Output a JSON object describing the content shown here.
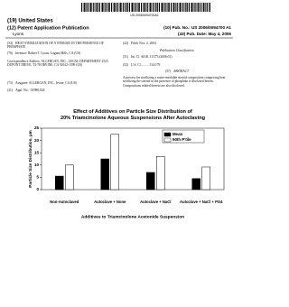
{
  "header": {
    "barcode_number": "US 20060094700A1",
    "country": "(19) United States",
    "kind": "(12) Patent Application Publication",
    "pub_no": "(10) Pub. No.: US 2006/0094700 A1",
    "inventor_short": "Lyons",
    "pub_date": "(43) Pub. Date: May 4, 2006"
  },
  "left_fields": [
    {
      "code": "(54)",
      "text": "HEAT STERILIZATION OF A STEROID IN THE PRESENCE OF PHOSPHATE"
    },
    {
      "code": "(76)",
      "text": "Inventor: Robert T. Lyons, Laguna Hills, CA (US)"
    },
    {
      "code": "",
      "text": "Correspondence Address: ALLERGAN, INC., LEGAL DEPARTMENT 2525 DUPONT DRIVE, T2-7H IRVINE, CA 92612-1599 (US)"
    },
    {
      "code": "(73)",
      "text": "Assignee: ALLERGAN, INC., Irvine, CA (US)"
    },
    {
      "code": "(21)",
      "text": "Appl. No.: 10/980,024"
    }
  ],
  "right_fields": [
    {
      "code": "(22)",
      "text": "Filed: Nov. 2, 2004"
    },
    {
      "code": "",
      "text": "Publication Classification"
    },
    {
      "code": "(51)",
      "text": "Int. Cl. A61K 31/573 (2006.01)"
    },
    {
      "code": "(52)",
      "text": "U.S. Cl. ........ 514/179"
    },
    {
      "code": "(57)",
      "text": "ABSTRACT"
    },
    {
      "code": "",
      "text": "A process for sterilizing a water-insoluble steroid composition comprising heat sterilizing the steroid in the presence of phosphate is disclosed herein. Compositions related thereto are also disclosed."
    }
  ],
  "chart_data": {
    "type": "bar",
    "title": "Effect of Additives on Particle Size Distribution of 20% Triamcinolone Aqueous Suspensions After Autoclaving",
    "ylabel": "Particle Size Distribution, µm",
    "xlabel": "Additives to Triamcinolone Acetonide Suspension",
    "categories": [
      "Non-Autoclaved",
      "Autoclave + None",
      "Autoclave + NaCl",
      "Autoclave + NaCl + PO4"
    ],
    "series": [
      {
        "name": "Mean",
        "color": "#000000",
        "values": [
          5.5,
          12.5,
          7,
          4.5
        ]
      },
      {
        "name": "90th P'tile",
        "color": "#ffffff",
        "values": [
          10,
          22.5,
          13.5,
          9.2
        ]
      }
    ],
    "ylim": [
      0,
      25
    ],
    "yticks": [
      0,
      5,
      10,
      15,
      20,
      25
    ],
    "legend": "upper right"
  }
}
